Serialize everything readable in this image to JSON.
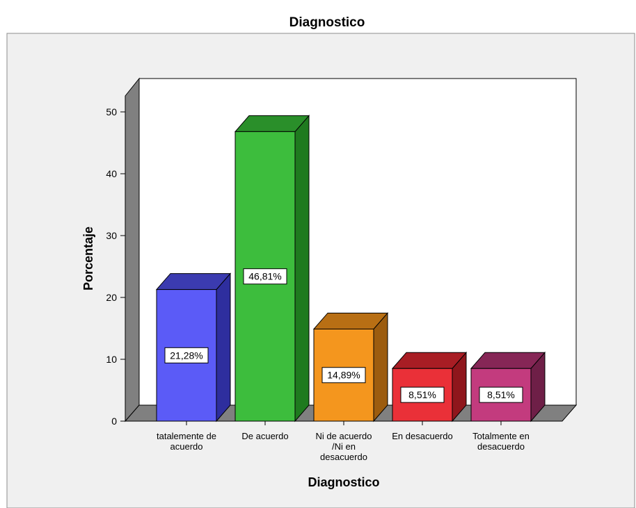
{
  "chart_data": {
    "type": "bar",
    "title": "Diagnostico",
    "xlabel": "Diagnostico",
    "ylabel": "Porcentaje",
    "ylim": [
      0,
      50
    ],
    "yticks": [
      "0",
      "10",
      "20",
      "30",
      "40",
      "50"
    ],
    "categories": [
      [
        "tatalemente de",
        "acuerdo"
      ],
      [
        "De acuerdo"
      ],
      [
        "Ni de acuerdo",
        "/Ni en",
        "desacuerdo"
      ],
      [
        "En desacuerdo"
      ],
      [
        "Totalmente en",
        "desacuerdo"
      ]
    ],
    "values": [
      21.28,
      46.81,
      14.89,
      8.51,
      8.51
    ],
    "data_labels": [
      "21,28%",
      "46,81%",
      "14,89%",
      "8,51%",
      "8,51%"
    ],
    "colors": [
      {
        "front": "#5b5bf7",
        "side": "#2e2e9e",
        "top": "#3b3bb0"
      },
      {
        "front": "#3dbd3d",
        "side": "#1f7a1f",
        "top": "#2a8f2a"
      },
      {
        "front": "#f4961e",
        "side": "#9c5c0f",
        "top": "#b86f14"
      },
      {
        "front": "#ea3038",
        "side": "#8f161c",
        "top": "#a81d24"
      },
      {
        "front": "#c33b7e",
        "side": "#6e1f47",
        "top": "#862656"
      }
    ],
    "grid": false,
    "legend": "none"
  }
}
